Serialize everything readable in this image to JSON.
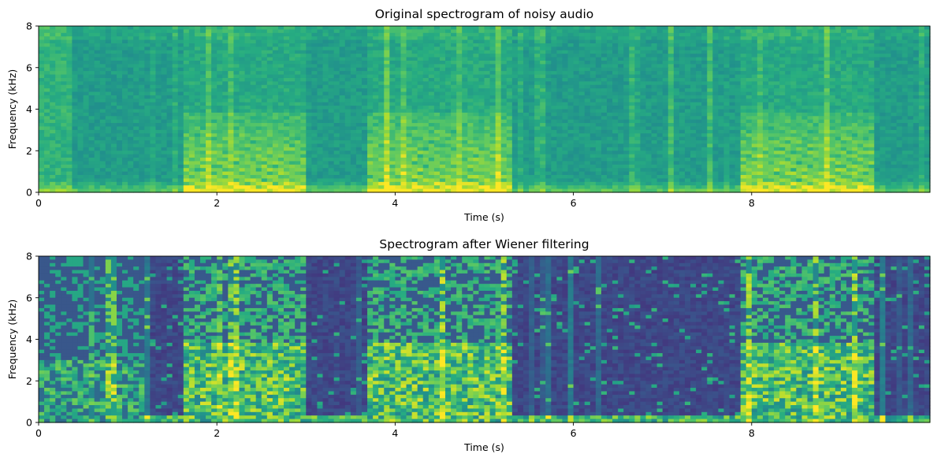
{
  "chart_data": [
    {
      "type": "heatmap",
      "title": "Original spectrogram of noisy audio",
      "xlabel": "Time (s)",
      "ylabel": "Frequency (kHz)",
      "xlim": [
        0,
        10
      ],
      "ylim": [
        0,
        8
      ],
      "xticks": [
        0,
        2,
        4,
        6,
        8
      ],
      "yticks": [
        0,
        2,
        4,
        6,
        8
      ],
      "colormap": "viridis",
      "speech_segments_s": [
        [
          1.6,
          3.0
        ],
        [
          3.7,
          5.3
        ],
        [
          7.9,
          9.4
        ]
      ],
      "background_level": 0.55,
      "colors": {
        "background": "#2a9a88",
        "energy_high": "#c8e020",
        "energy_mid": "#5ec962"
      }
    },
    {
      "type": "heatmap",
      "title": "Spectrogram after Wiener filtering",
      "xlabel": "Time (s)",
      "ylabel": "Frequency (kHz)",
      "xlim": [
        0,
        10
      ],
      "ylim": [
        0,
        8
      ],
      "xticks": [
        0,
        2,
        4,
        6,
        8
      ],
      "yticks": [
        0,
        2,
        4,
        6,
        8
      ],
      "colormap": "viridis",
      "speech_segments_s": [
        [
          1.6,
          3.0
        ],
        [
          3.7,
          5.3
        ],
        [
          7.9,
          9.4
        ]
      ],
      "background_level": 0.22,
      "colors": {
        "background": "#3b528b",
        "energy_high": "#c8e020",
        "energy_mid": "#5ec962"
      }
    }
  ]
}
